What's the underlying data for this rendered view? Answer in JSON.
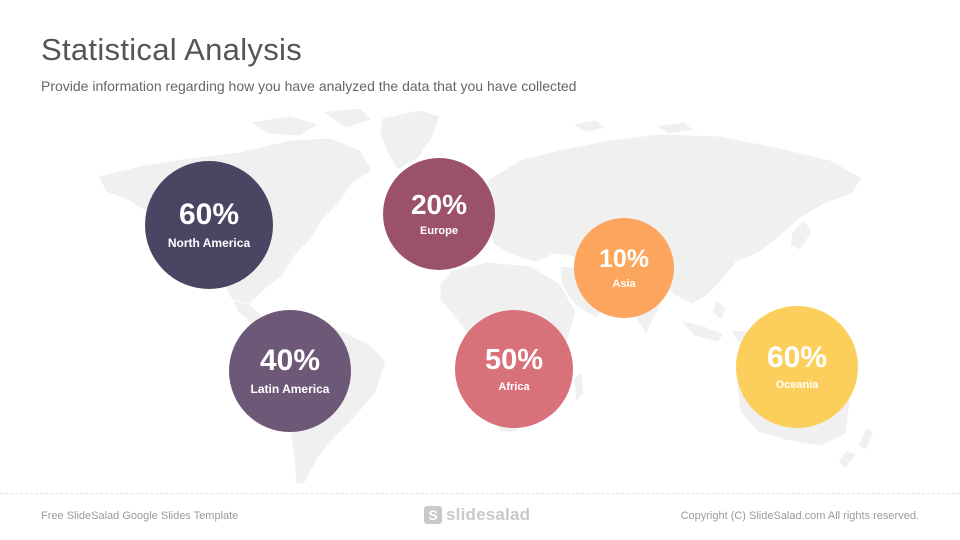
{
  "slide": {
    "title": "Statistical Analysis",
    "subtitle": "Provide information regarding how you have analyzed the data that you have collected"
  },
  "map": {
    "icon": "world-map-icon",
    "fill": "#f0f0f0",
    "stroke": "#ffffff"
  },
  "regions": [
    {
      "key": "north-america",
      "value": "60%",
      "label": "North America",
      "color": "#4a4563"
    },
    {
      "key": "europe",
      "value": "20%",
      "label": "Europe",
      "color": "#9b5268"
    },
    {
      "key": "asia",
      "value": "10%",
      "label": "Asia",
      "color": "#fba65c"
    },
    {
      "key": "latin-america",
      "value": "40%",
      "label": "Latin America",
      "color": "#6e5878"
    },
    {
      "key": "africa",
      "value": "50%",
      "label": "Africa",
      "color": "#d9717b"
    },
    {
      "key": "oceania",
      "value": "60%",
      "label": "Oceania",
      "color": "#fccf5d"
    }
  ],
  "footer": {
    "left": "Free SlideSalad Google Slides Template",
    "logo_mark": "S",
    "logo_text": "slidesalad",
    "right": "Copyright (C) SlideSalad.com  All rights reserved."
  }
}
